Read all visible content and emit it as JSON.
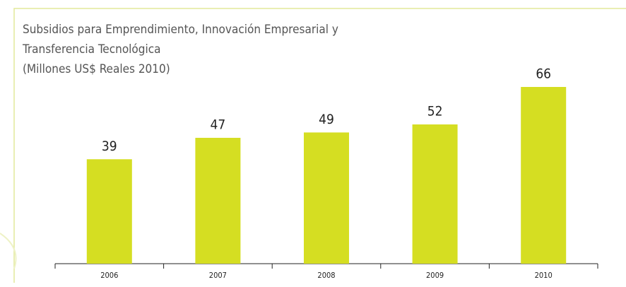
{
  "chart_data": {
    "type": "bar",
    "title": [
      "Subsidios para Emprendimiento, Innovación Empresarial y",
      "Transferencia Tecnológica"
    ],
    "subtitle": "(Millones US$ Reales 2010)",
    "categories": [
      "2006",
      "2007",
      "2008",
      "2009",
      "2010"
    ],
    "values": [
      39,
      47,
      49,
      52,
      66
    ],
    "color": "#d5de22"
  }
}
